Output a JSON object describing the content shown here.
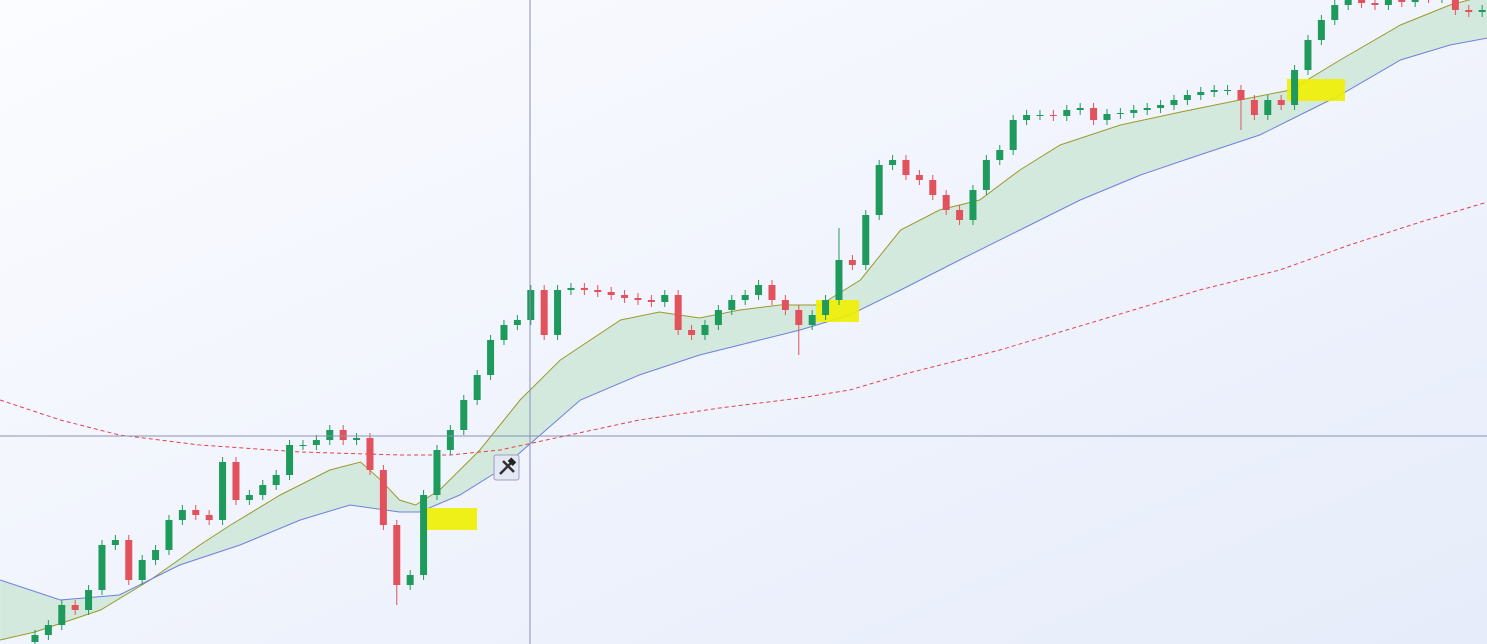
{
  "chart_data": {
    "type": "candlestick",
    "xlim": [
      -2.61,
      108.36
    ],
    "ylim": [
      0,
      644
    ],
    "up_color": "#1e9a5c",
    "down_color": "#e2525c",
    "band_color": "#cfe6d8",
    "open": [
      2,
      9,
      19,
      39,
      34,
      54,
      99,
      104,
      64,
      84,
      94,
      124,
      134,
      129,
      124,
      182,
      144,
      149,
      159,
      169,
      199,
      199,
      204,
      214,
      204,
      206,
      174,
      119,
      59,
      69,
      149,
      194,
      214,
      244,
      269,
      304,
      319,
      324,
      354,
      309,
      354,
      356,
      354,
      352,
      349,
      346,
      344,
      342,
      349,
      314,
      309,
      319,
      334,
      344,
      349,
      359,
      344,
      334,
      319,
      329,
      344,
      384,
      379,
      429,
      479,
      484,
      469,
      464,
      449,
      434,
      424,
      454,
      484,
      494,
      524,
      529,
      529,
      528,
      534,
      536,
      524,
      530,
      531,
      534,
      536,
      539,
      544,
      549,
      552,
      554,
      554,
      544,
      529,
      544,
      539,
      574,
      604,
      624,
      639,
      644,
      641,
      639,
      644,
      642,
      647,
      646,
      649,
      634,
      632
    ],
    "high": [
      14,
      24,
      44,
      44,
      59,
      104,
      109,
      109,
      89,
      99,
      129,
      139,
      139,
      134,
      187,
      187,
      154,
      164,
      174,
      204,
      204,
      209,
      219,
      219,
      211,
      211,
      179,
      124,
      74,
      154,
      199,
      219,
      249,
      274,
      309,
      324,
      329,
      359,
      359,
      359,
      361,
      361,
      359,
      357,
      354,
      351,
      349,
      354,
      354,
      319,
      324,
      339,
      349,
      354,
      364,
      364,
      349,
      339,
      334,
      349,
      416,
      389,
      434,
      484,
      489,
      489,
      474,
      469,
      454,
      439,
      459,
      489,
      499,
      529,
      534,
      534,
      534,
      539,
      541,
      541,
      535,
      536,
      539,
      541,
      544,
      549,
      554,
      557,
      559,
      559,
      559,
      549,
      549,
      549,
      579,
      609,
      629,
      644,
      649,
      649,
      646,
      649,
      649,
      652,
      652,
      654,
      654,
      639,
      639
    ],
    "low": [
      -3,
      4,
      14,
      29,
      29,
      49,
      94,
      59,
      59,
      79,
      89,
      119,
      124,
      119,
      119,
      139,
      139,
      144,
      154,
      164,
      194,
      194,
      199,
      199,
      199,
      169,
      114,
      39,
      54,
      64,
      144,
      189,
      209,
      239,
      264,
      299,
      314,
      319,
      304,
      304,
      349,
      349,
      347,
      344,
      341,
      339,
      337,
      337,
      309,
      304,
      304,
      314,
      329,
      339,
      344,
      339,
      329,
      289,
      314,
      324,
      339,
      374,
      374,
      424,
      474,
      464,
      459,
      444,
      429,
      419,
      419,
      449,
      479,
      489,
      519,
      524,
      523,
      523,
      529,
      519,
      519,
      525,
      526,
      529,
      531,
      534,
      539,
      544,
      547,
      549,
      514,
      524,
      524,
      534,
      534,
      569,
      599,
      619,
      634,
      636,
      634,
      634,
      637,
      637,
      641,
      641,
      629,
      627,
      627
    ],
    "close": [
      9,
      19,
      39,
      34,
      54,
      99,
      104,
      64,
      84,
      94,
      124,
      134,
      129,
      124,
      182,
      144,
      149,
      159,
      169,
      199,
      199,
      204,
      214,
      204,
      206,
      174,
      119,
      59,
      69,
      149,
      194,
      214,
      244,
      269,
      304,
      319,
      324,
      354,
      309,
      354,
      356,
      354,
      352,
      349,
      346,
      344,
      342,
      349,
      314,
      309,
      319,
      334,
      344,
      349,
      359,
      344,
      334,
      319,
      329,
      344,
      384,
      379,
      429,
      479,
      484,
      469,
      464,
      449,
      434,
      424,
      454,
      484,
      494,
      524,
      529,
      529,
      528,
      534,
      536,
      524,
      530,
      531,
      534,
      536,
      539,
      544,
      549,
      552,
      554,
      554,
      544,
      529,
      544,
      539,
      574,
      604,
      624,
      639,
      644,
      641,
      639,
      644,
      642,
      647,
      646,
      649,
      634,
      632,
      634
    ],
    "series": [
      {
        "color": "#9a9a2a",
        "style": "solid",
        "x": [
          -2.6,
          0,
          4.9,
          8.6,
          12.3,
          14.6,
          18.3,
          22.0,
          24.3,
          25.8,
          27.2,
          28.4,
          30.2,
          33.2,
          36.2,
          39.2,
          43.7,
          46.6,
          49.6,
          52.6,
          55.6,
          58.6,
          61.6,
          64.6,
          67.5,
          70.5,
          73.5,
          76.5,
          81.0,
          85.5,
          89.9,
          93.7,
          97.4,
          101.9,
          105.6,
          108.4
        ],
        "values": [
          4,
          12,
          34,
          64,
          99,
          119,
          149,
          174,
          182,
          164,
          144,
          139,
          154,
          194,
          244,
          284,
          324,
          332,
          326,
          334,
          339,
          339,
          364,
          414,
          434,
          444,
          474,
          499,
          519,
          532,
          544,
          554,
          584,
          619,
          639,
          649
        ]
      },
      {
        "color": "#6f7fe0",
        "style": "solid",
        "x": [
          -2.6,
          1.9,
          6.3,
          10.8,
          15.3,
          19.8,
          23.5,
          27.2,
          28.7,
          31.7,
          34.7,
          37.7,
          40.7,
          45.1,
          49.6,
          54.1,
          57.1,
          60.8,
          64.6,
          69.0,
          73.5,
          78.0,
          82.5,
          86.9,
          91.4,
          94.4,
          97.4,
          101.9,
          105.6,
          108.4
        ],
        "values": [
          64,
          44,
          49,
          79,
          99,
          124,
          139,
          132,
          132,
          149,
          174,
          209,
          244,
          269,
          289,
          304,
          314,
          329,
          354,
          384,
          414,
          444,
          469,
          489,
          509,
          529,
          549,
          584,
          599,
          606
        ]
      },
      {
        "color": "#e8404a",
        "style": "dashed",
        "x": [
          -2.6,
          1.9,
          6.3,
          12.3,
          19.8,
          27.2,
          31.0,
          34.7,
          39.2,
          45.1,
          51.1,
          57.1,
          60.8,
          64.6,
          72.0,
          79.5,
          86.9,
          92.9,
          98.1,
          103.4,
          108.4
        ],
        "values": [
          244,
          224,
          209,
          199,
          192,
          189,
          189,
          194,
          207,
          224,
          236,
          246,
          254,
          269,
          294,
          324,
          354,
          374,
          399,
          422,
          442
        ]
      }
    ]
  }
}
